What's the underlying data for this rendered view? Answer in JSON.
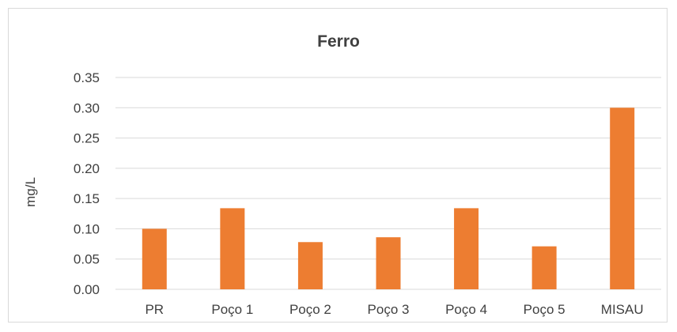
{
  "chart_data": {
    "type": "bar",
    "title": "Ferro",
    "xlabel": "",
    "ylabel": "mg/L",
    "categories": [
      "PR",
      "Poço 1",
      "Poço 2",
      "Poço 3",
      "Poço 4",
      "Poço 5",
      "MISAU"
    ],
    "values": [
      0.1,
      0.134,
      0.078,
      0.086,
      0.134,
      0.071,
      0.3
    ],
    "ylim": [
      0,
      0.35
    ],
    "yticks": [
      "0.00",
      "0.05",
      "0.10",
      "0.15",
      "0.20",
      "0.25",
      "0.30",
      "0.35"
    ],
    "grid": true,
    "legend": "none",
    "bar_color": "#ed7d31",
    "grid_color": "#d9d9d9"
  }
}
